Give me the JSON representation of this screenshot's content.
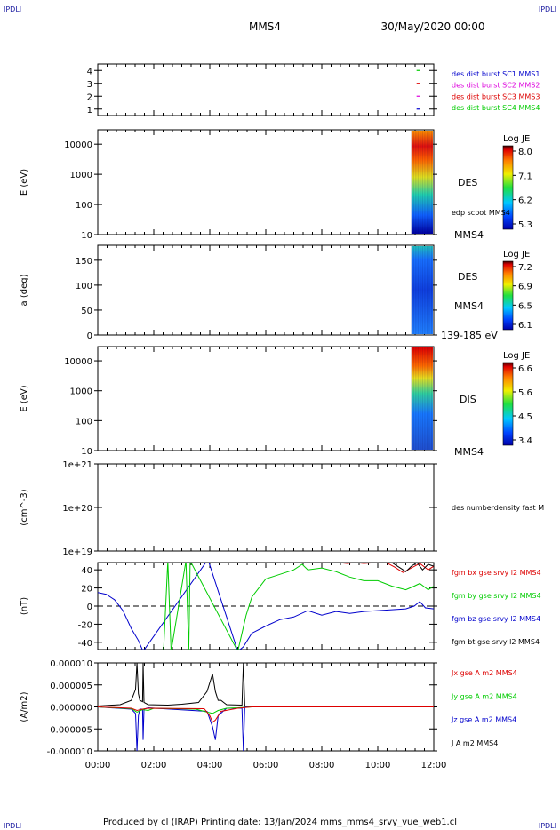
{
  "corners": {
    "tl": "IPDLI",
    "tr": "IPDLI",
    "bl": "IPDLI",
    "br": "IPDLI"
  },
  "header": {
    "spacecraft": "MMS4",
    "date": "30/May/2020 00:00"
  },
  "footer": {
    "text": "Produced by cl (IRAP)   Printing date: 13/Jan/2024   mms_mms4_srvy_vue_web1.cl"
  },
  "colors": {
    "black": "#000000",
    "blue": "#0000cc",
    "green": "#00cc00",
    "red": "#dd0000",
    "magenta": "#dd00dd"
  },
  "chart_data": [
    {
      "type": "scatter",
      "name": "availability",
      "x_unit": "hours",
      "xlim": [
        0,
        12
      ],
      "ylim": [
        0.5,
        4.5
      ],
      "yticks": [
        "1",
        "2",
        "3",
        "4"
      ],
      "legend": [
        {
          "label": "des dist burst SC1 MMS1",
          "color": "#0000cc"
        },
        {
          "label": "des dist burst SC2 MMS2",
          "color": "#dd00dd"
        },
        {
          "label": "des dist burst SC3 MMS3",
          "color": "#dd0000"
        },
        {
          "label": "des dist burst SC4 MMS4",
          "color": "#00cc00"
        }
      ],
      "markers": [
        {
          "y": 4,
          "x": 11.45,
          "color": "#00cc00"
        },
        {
          "y": 3,
          "x": 11.45,
          "color": "#dd0000"
        },
        {
          "y": 2,
          "x": 11.45,
          "color": "#dd00dd"
        },
        {
          "y": 1,
          "x": 11.45,
          "color": "#0000cc"
        }
      ]
    },
    {
      "type": "heatmap",
      "name": "des-energy",
      "ylabel": "E (eV)",
      "yscale": "log",
      "ylim": [
        10,
        30000
      ],
      "yticks": [
        "10",
        "100",
        "1000",
        "10000"
      ],
      "x_start": 11.2,
      "x_end": 12,
      "side_labels": [
        "DES",
        "edp scpot MMS4",
        "MMS4"
      ],
      "colorbar": {
        "title": "Log JE",
        "ticks": [
          "8.0",
          "7.1",
          "6.2",
          "5.3"
        ]
      }
    },
    {
      "type": "heatmap",
      "name": "des-pitch",
      "ylabel": "a (deg)",
      "ylim": [
        0,
        180
      ],
      "yticks": [
        "0",
        "50",
        "100",
        "150"
      ],
      "x_start": 11.2,
      "x_end": 12,
      "side_labels": [
        "DES",
        "MMS4",
        "139-185 eV"
      ],
      "colorbar": {
        "title": "Log JE",
        "ticks": [
          "7.2",
          "6.9",
          "6.5",
          "6.1"
        ]
      }
    },
    {
      "type": "heatmap",
      "name": "dis-energy",
      "ylabel": "E (eV)",
      "yscale": "log",
      "ylim": [
        10,
        30000
      ],
      "yticks": [
        "10",
        "100",
        "1000",
        "10000"
      ],
      "x_start": 11.2,
      "x_end": 12,
      "side_labels": [
        "DIS",
        "MMS4"
      ],
      "colorbar": {
        "title": "Log JE",
        "ticks": [
          "6.6",
          "5.6",
          "4.5",
          "3.4"
        ]
      }
    },
    {
      "type": "line",
      "name": "density",
      "ylabel": "(cm^-3)",
      "yscale": "log",
      "ylim": [
        1e+19,
        1e+21
      ],
      "yticks": [
        "1e+19",
        "1e+20",
        "1e+21"
      ],
      "series": [],
      "legend": [
        {
          "label": "des numberdensity fast M",
          "color": "#000000"
        }
      ]
    },
    {
      "type": "line",
      "name": "magnetic-field",
      "ylabel": "(nT)",
      "ylim": [
        -48,
        48
      ],
      "yticks": [
        "-40",
        "-20",
        "0",
        "20",
        "40"
      ],
      "legend": [
        {
          "label": "fgm bx gse srvy l2 MMS4",
          "color": "#dd0000"
        },
        {
          "label": "fgm by gse srvy l2 MMS4",
          "color": "#00cc00"
        },
        {
          "label": "fgm bz gse srvy l2 MMS4",
          "color": "#0000cc"
        },
        {
          "label": "fgm bt gse srvy l2 MMS4",
          "color": "#000000"
        }
      ],
      "series": [
        {
          "name": "fgm bz gse srvy l2 MMS4",
          "color": "#0000cc",
          "x": [
            0,
            0.3,
            0.6,
            0.9,
            1.2,
            1.45,
            1.62,
            3.9,
            3.95,
            5.0,
            5.2,
            5.5,
            6.0,
            6.5,
            7.0,
            7.5,
            8.0,
            8.5,
            9.0,
            9.5,
            10.0,
            10.5,
            11.0,
            11.3,
            11.5,
            11.7,
            12.0
          ],
          "y": [
            15,
            13,
            7,
            -5,
            -25,
            -38,
            -50,
            50,
            50,
            -50,
            -45,
            -30,
            -22,
            -15,
            -12,
            -5,
            -10,
            -6,
            -8,
            -6,
            -5,
            -4,
            -3,
            0,
            5,
            -2,
            -3
          ]
        },
        {
          "name": "fgm by gse srvy l2 MMS4",
          "color": "#00cc00",
          "x": [
            2.35,
            2.5,
            2.62,
            3.15,
            3.25,
            3.3,
            5.0,
            5.15,
            5.3,
            5.5,
            6.0,
            6.5,
            7.0,
            7.3,
            7.5,
            8.0,
            8.5,
            9.0,
            9.5,
            10.0,
            10.5,
            11.0,
            11.3,
            11.5,
            11.8,
            12.0
          ],
          "y": [
            -50,
            50,
            -50,
            50,
            -50,
            50,
            -50,
            -30,
            -10,
            10,
            30,
            35,
            40,
            46,
            40,
            42,
            38,
            32,
            28,
            28,
            22,
            18,
            22,
            25,
            18,
            22
          ]
        },
        {
          "name": "fgm bx gse srvy l2 MMS4",
          "color": "#dd0000",
          "x": [
            8.6,
            8.9,
            9.2,
            9.5,
            10.0,
            10.3,
            10.6,
            10.9,
            11.2,
            11.5,
            11.8,
            12.0
          ],
          "y": [
            48,
            47,
            48,
            47,
            48,
            48,
            43,
            37,
            42,
            47,
            40,
            44
          ]
        },
        {
          "name": "fgm bt gse srvy l2 MMS4",
          "color": "#000000",
          "x": [
            10.5,
            10.8,
            11.0,
            11.2,
            11.4,
            11.6,
            11.8,
            12.0
          ],
          "y": [
            48,
            42,
            38,
            44,
            48,
            40,
            46,
            44
          ]
        }
      ]
    },
    {
      "type": "line",
      "name": "current-density",
      "ylabel": "(A/m2)",
      "ylim": [
        -1e-05,
        1e-05
      ],
      "yticks": [
        "-0.000010",
        "-0.000005",
        "0.000000",
        "0.000005",
        "0.000010"
      ],
      "xticks": [
        "00:00",
        "02:00",
        "04:00",
        "06:00",
        "08:00",
        "10:00",
        "12:00"
      ],
      "legend": [
        {
          "label": "Jx gse A m2 MMS4",
          "color": "#dd0000"
        },
        {
          "label": "Jy gse A m2 MMS4",
          "color": "#00cc00"
        },
        {
          "label": "Jz gse A m2 MMS4",
          "color": "#0000cc"
        },
        {
          "label": "J A m2 MMS4",
          "color": "#000000"
        }
      ],
      "series": [
        {
          "name": "J A m2 MMS4",
          "color": "#000000",
          "x": [
            0,
            0.8,
            1.2,
            1.35,
            1.4,
            1.45,
            1.5,
            1.6,
            1.62,
            1.65,
            1.8,
            2.5,
            3.0,
            3.6,
            3.9,
            4.1,
            4.2,
            4.3,
            4.4,
            4.6,
            5.15,
            5.2,
            5.25,
            6.0,
            12.0
          ],
          "y": [
            2e-07,
            5e-07,
            1.5e-06,
            4e-06,
            1e-05,
            3e-06,
            1.5e-06,
            1.2e-06,
            1e-05,
            1e-06,
            5e-07,
            4e-07,
            6e-07,
            1e-06,
            3.5e-06,
            7.5e-06,
            3.5e-06,
            1.5e-06,
            1.5e-06,
            5e-07,
            4e-07,
            1e-05,
            2e-07,
            1e-07,
            1e-07
          ]
        },
        {
          "name": "Jz gse A m2 MMS4",
          "color": "#0000cc",
          "x": [
            0,
            1.2,
            1.35,
            1.4,
            1.45,
            1.5,
            1.6,
            1.62,
            1.65,
            1.8,
            3.9,
            4.1,
            4.2,
            4.3,
            4.6,
            5.15,
            5.2,
            5.25,
            6.0,
            12.0
          ],
          "y": [
            0,
            -5e-07,
            -1.5e-06,
            -1e-05,
            -2e-06,
            -5e-07,
            -5e-07,
            -7.5e-06,
            -5e-07,
            -2e-07,
            -1e-06,
            -4.5e-06,
            -7.5e-06,
            -2e-06,
            -3e-07,
            -3e-07,
            -1e-05,
            0,
            0,
            0
          ]
        },
        {
          "name": "Jy gse A m2 MMS4",
          "color": "#00cc00",
          "x": [
            0,
            1.2,
            1.4,
            1.6,
            1.8,
            2.0,
            3.5,
            3.8,
            4.1,
            4.3,
            4.6,
            5.0,
            5.5,
            12.0
          ],
          "y": [
            0,
            -4e-07,
            -1.2e-06,
            -6e-07,
            -8e-07,
            -3e-07,
            -5e-07,
            -1e-06,
            -1.5e-06,
            -8e-07,
            -3e-07,
            -2e-07,
            0,
            0
          ]
        },
        {
          "name": "Jx gse A m2 MMS4",
          "color": "#dd0000",
          "x": [
            0,
            1.2,
            1.4,
            1.6,
            1.8,
            3.8,
            4.0,
            4.1,
            4.2,
            4.4,
            5.0,
            5.5,
            12.0
          ],
          "y": [
            0,
            -3e-07,
            -8e-07,
            -5e-07,
            -3e-07,
            -4e-07,
            -2e-06,
            -3.5e-06,
            -3e-06,
            -1e-06,
            -3e-07,
            0,
            0
          ]
        }
      ]
    }
  ]
}
